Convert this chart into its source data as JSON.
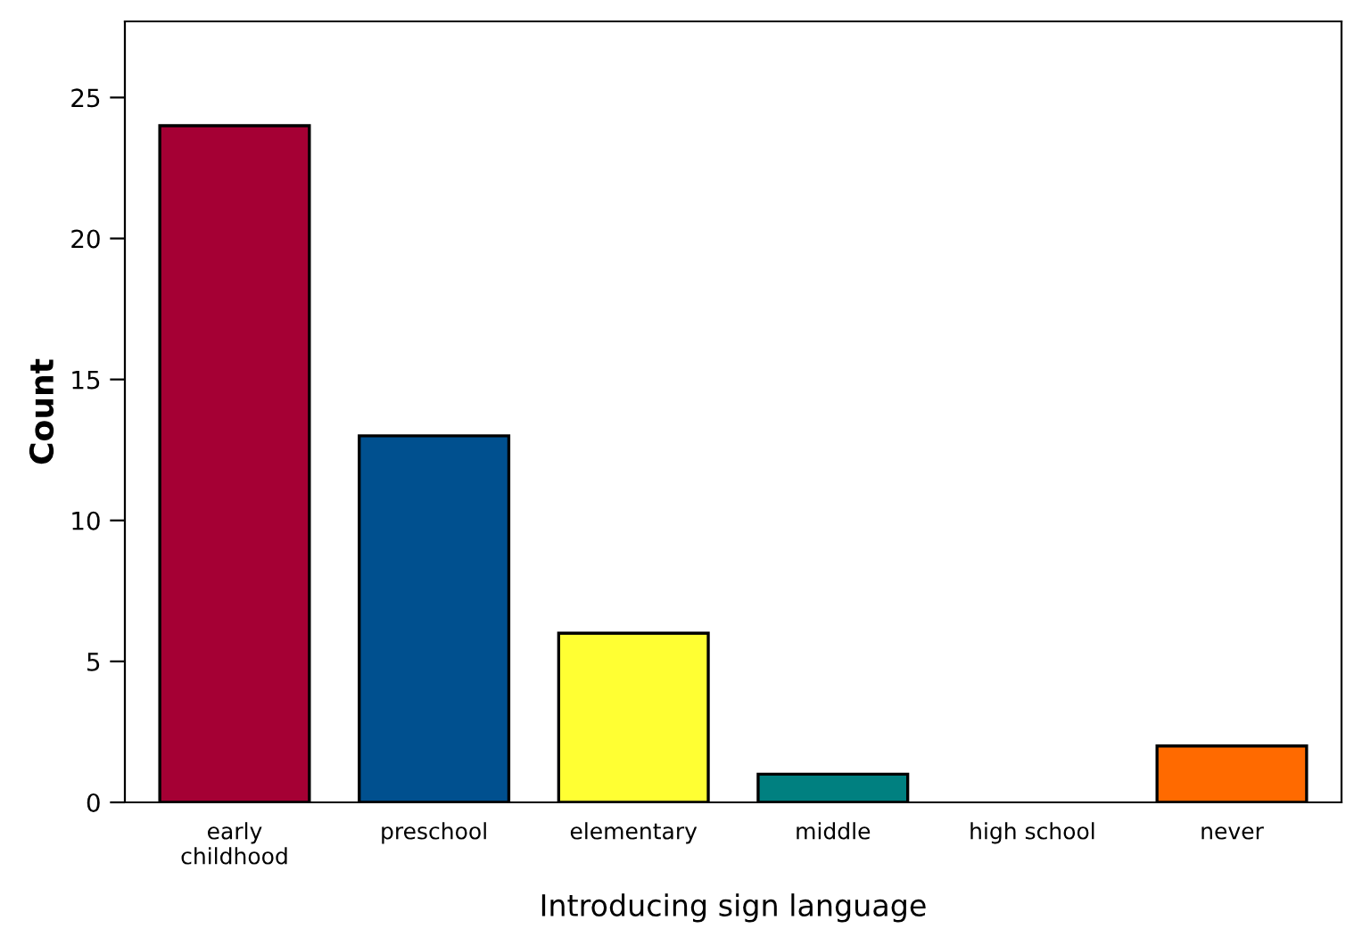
{
  "chart_data": {
    "type": "bar",
    "xlabel": "Introducing sign language",
    "ylabel": "Count",
    "categories": [
      "early\nchildhood",
      "preschool",
      "elementary",
      "middle",
      "high school",
      "never"
    ],
    "values": [
      24,
      13,
      6,
      1,
      0,
      2
    ],
    "colors": [
      "#a50034",
      "#00508f",
      "#ffff33",
      "#008080",
      null,
      "#ff6a00"
    ],
    "ylim": [
      0,
      27.7
    ],
    "yticks": [
      0,
      5,
      10,
      15,
      20,
      25
    ],
    "grid": false
  }
}
